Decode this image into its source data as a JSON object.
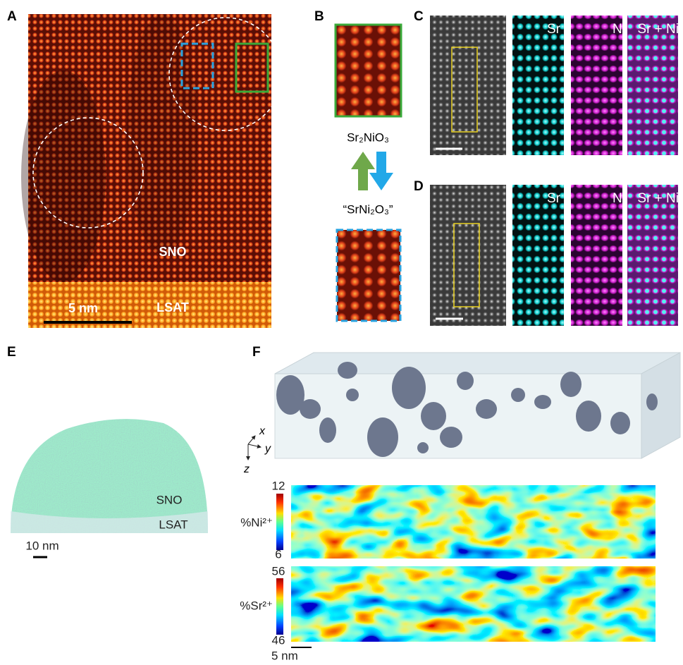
{
  "panels": {
    "a": {
      "label": "A",
      "scale_bar": "5 nm",
      "film": "SNO",
      "substrate": "LSAT"
    },
    "b": {
      "label": "B",
      "phase_top": "Sr₂NiO₃",
      "phase_bottom": "“SrNi₂O₃”"
    },
    "c": {
      "label": "C",
      "maps": [
        "Sr",
        "Ni",
        "Sr + Ni"
      ]
    },
    "d": {
      "label": "D",
      "maps": [
        "Sr",
        "Ni",
        "Sr + Ni"
      ]
    },
    "e": {
      "label": "E",
      "film": "SNO",
      "substrate": "LSAT",
      "scale_bar": "10 nm"
    },
    "f": {
      "label": "F",
      "axes": [
        "x",
        "y",
        "z"
      ],
      "colorbars": [
        {
          "label": "%Ni²⁺",
          "max": 12,
          "min": 6
        },
        {
          "label": "%Sr²⁺",
          "max": 56,
          "min": 46
        }
      ],
      "scale_bar": "5 nm"
    }
  }
}
